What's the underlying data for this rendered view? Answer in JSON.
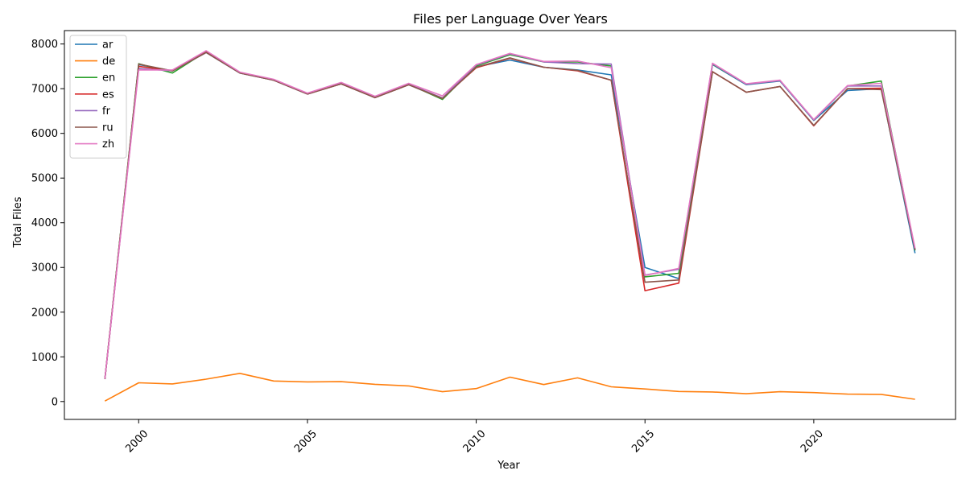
{
  "chart_data": {
    "type": "line",
    "title": "Files per Language Over Years",
    "xlabel": "Year",
    "ylabel": "Total Files",
    "xlim": [
      1997.8,
      2024.2
    ],
    "ylim": [
      -400,
      8300
    ],
    "xticks": [
      2000,
      2005,
      2010,
      2015,
      2020
    ],
    "yticks": [
      0,
      1000,
      2000,
      3000,
      4000,
      5000,
      6000,
      7000,
      8000
    ],
    "legend_position": "upper-left",
    "grid": false,
    "x": [
      1999,
      2000,
      2001,
      2002,
      2003,
      2004,
      2005,
      2006,
      2007,
      2008,
      2009,
      2010,
      2011,
      2012,
      2013,
      2014,
      2015,
      2016,
      2017,
      2018,
      2019,
      2020,
      2021,
      2022,
      2023
    ],
    "series": [
      {
        "name": "ar",
        "color": "#1f77b4",
        "values": [
          500,
          7540,
          7400,
          7810,
          7350,
          7190,
          6880,
          7110,
          6800,
          7090,
          6780,
          7490,
          7640,
          7480,
          7420,
          7310,
          3000,
          2750,
          7540,
          7090,
          7170,
          6290,
          6960,
          7000,
          3320
        ]
      },
      {
        "name": "de",
        "color": "#ff7f0e",
        "values": [
          10,
          420,
          395,
          500,
          630,
          460,
          440,
          445,
          385,
          350,
          220,
          290,
          545,
          380,
          530,
          330,
          280,
          225,
          215,
          175,
          220,
          200,
          165,
          160,
          50
        ]
      },
      {
        "name": "en",
        "color": "#2ca02c",
        "values": [
          510,
          7560,
          7350,
          7830,
          7360,
          7200,
          6890,
          7130,
          6810,
          7100,
          6760,
          7510,
          7760,
          7600,
          7600,
          7510,
          2790,
          2870,
          7550,
          7100,
          7180,
          6300,
          7060,
          7170,
          3380
        ]
      },
      {
        "name": "es",
        "color": "#d62728",
        "values": [
          505,
          7500,
          7400,
          7820,
          7355,
          7190,
          6880,
          7110,
          6800,
          7090,
          6790,
          7470,
          7680,
          7480,
          7400,
          7190,
          2480,
          2650,
          7380,
          6920,
          7050,
          6170,
          7000,
          7010,
          3400
        ]
      },
      {
        "name": "fr",
        "color": "#9467bd",
        "values": [
          505,
          7450,
          7400,
          7810,
          7350,
          7190,
          6880,
          7120,
          6800,
          7100,
          6790,
          7530,
          7780,
          7600,
          7560,
          7550,
          2830,
          2960,
          7560,
          7100,
          7180,
          6300,
          7060,
          7060,
          3400
        ]
      },
      {
        "name": "ru",
        "color": "#8c564b",
        "values": [
          505,
          7550,
          7400,
          7810,
          7350,
          7190,
          6880,
          7110,
          6800,
          7090,
          6780,
          7480,
          7690,
          7480,
          7410,
          7190,
          2670,
          2720,
          7380,
          6920,
          7050,
          6180,
          7000,
          6980,
          3400
        ]
      },
      {
        "name": "zh",
        "color": "#e377c2",
        "values": [
          510,
          7420,
          7420,
          7850,
          7370,
          7210,
          6900,
          7140,
          6830,
          7120,
          6840,
          7540,
          7790,
          7610,
          7620,
          7470,
          2820,
          2980,
          7570,
          7110,
          7190,
          6310,
          7070,
          7120,
          3430
        ]
      }
    ]
  }
}
